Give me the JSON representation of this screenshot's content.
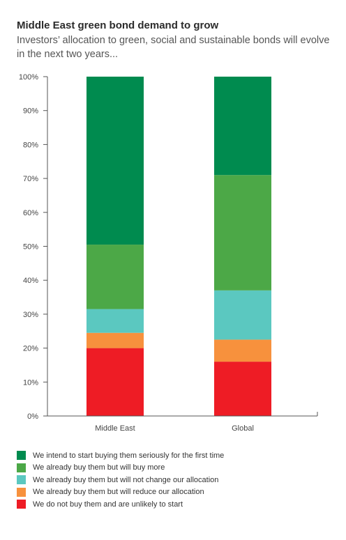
{
  "title": "Middle East green bond demand to grow",
  "subtitle": "Investors’ allocation to green, social and sustainable bonds will evolve in the next two years...",
  "chart_data": {
    "type": "bar",
    "stacked": true,
    "categories": [
      "Middle East",
      "Global"
    ],
    "yticks": [
      "0%",
      "10%",
      "20%",
      "30%",
      "40%",
      "50%",
      "60%",
      "70%",
      "80%",
      "90%",
      "100%"
    ],
    "ylim": [
      0,
      100
    ],
    "legend_position": "bottom",
    "series": [
      {
        "name": "We do not buy them and are unlikely to start",
        "color": "#ee1c25",
        "values": [
          20,
          16
        ]
      },
      {
        "name": "We already buy them but will reduce our allocation",
        "color": "#f7913d",
        "values": [
          4.5,
          6.5
        ]
      },
      {
        "name": "We already buy them but will not change our allocation",
        "color": "#5bc8c0",
        "values": [
          7,
          14.5
        ]
      },
      {
        "name": "We already buy them but will buy more",
        "color": "#4ca847",
        "values": [
          19,
          34
        ]
      },
      {
        "name": "We intend to start buying them seriously for the first time",
        "color": "#008b4f",
        "values": [
          49.5,
          29
        ]
      }
    ],
    "legend_order": [
      4,
      3,
      2,
      1,
      0
    ]
  }
}
